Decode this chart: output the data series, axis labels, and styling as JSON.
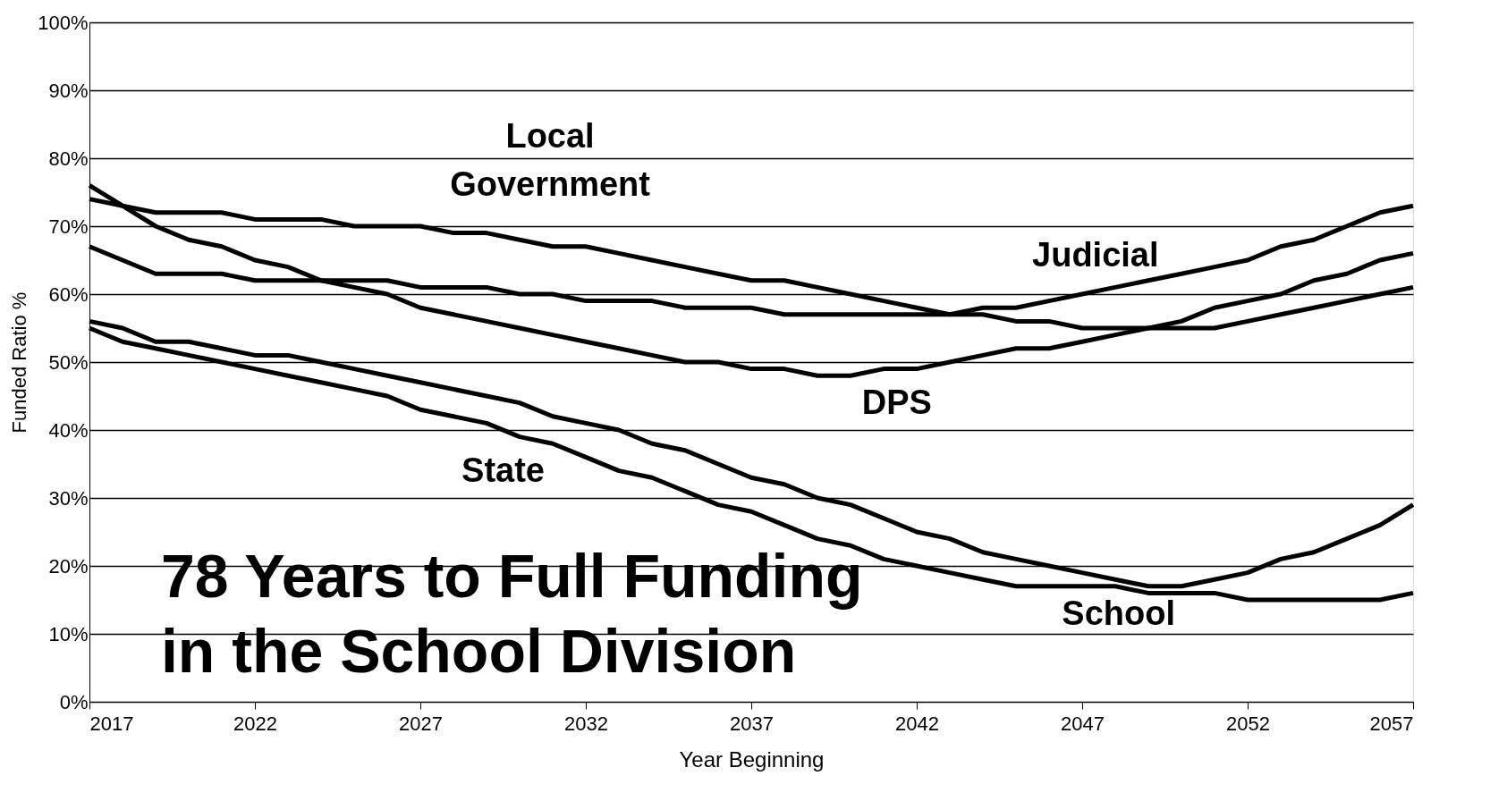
{
  "chart_data": {
    "type": "line",
    "xlabel": "Year Beginning",
    "ylabel": "Funded Ratio %",
    "x": [
      2017,
      2018,
      2019,
      2020,
      2021,
      2022,
      2023,
      2024,
      2025,
      2026,
      2027,
      2028,
      2029,
      2030,
      2031,
      2032,
      2033,
      2034,
      2035,
      2036,
      2037,
      2038,
      2039,
      2040,
      2041,
      2042,
      2043,
      2044,
      2045,
      2046,
      2047,
      2048,
      2049,
      2050,
      2051,
      2052,
      2053,
      2054,
      2055,
      2056,
      2057
    ],
    "series": [
      {
        "color": "#000000",
        "values": [
          74,
          73,
          72,
          72,
          72,
          71,
          71,
          71,
          70,
          70,
          70,
          69,
          69,
          68,
          67,
          67,
          66,
          65,
          64,
          63,
          62,
          62,
          61,
          60,
          59,
          58,
          57,
          58,
          58,
          59,
          60,
          61,
          62,
          63,
          64,
          65,
          67,
          68,
          70,
          72,
          73
        ]
      },
      {
        "color": "#000000",
        "values": [
          67,
          65,
          63,
          63,
          63,
          62,
          62,
          62,
          62,
          62,
          61,
          61,
          61,
          60,
          60,
          59,
          59,
          59,
          58,
          58,
          58,
          57,
          57,
          57,
          57,
          57,
          57,
          57,
          56,
          56,
          55,
          55,
          55,
          55,
          55,
          56,
          57,
          58,
          59,
          60,
          61
        ]
      },
      {
        "color": "#000000",
        "values": [
          76,
          73,
          70,
          68,
          67,
          65,
          64,
          62,
          61,
          60,
          58,
          57,
          56,
          55,
          54,
          53,
          52,
          51,
          50,
          50,
          49,
          49,
          48,
          48,
          49,
          49,
          50,
          51,
          52,
          52,
          53,
          54,
          55,
          56,
          58,
          59,
          60,
          62,
          63,
          65,
          66
        ]
      },
      {
        "color": "#000000",
        "values": [
          56,
          55,
          53,
          53,
          52,
          51,
          51,
          50,
          49,
          48,
          47,
          46,
          45,
          44,
          42,
          41,
          40,
          38,
          37,
          35,
          33,
          32,
          30,
          29,
          27,
          25,
          24,
          22,
          21,
          20,
          19,
          18,
          17,
          17,
          18,
          19,
          21,
          22,
          24,
          26,
          29
        ]
      },
      {
        "color": "#000000",
        "values": [
          55,
          53,
          52,
          51,
          50,
          49,
          48,
          47,
          46,
          45,
          43,
          42,
          41,
          39,
          38,
          36,
          34,
          33,
          31,
          29,
          28,
          26,
          24,
          23,
          21,
          20,
          19,
          18,
          17,
          17,
          17,
          17,
          16,
          16,
          16,
          15,
          15,
          15,
          15,
          15,
          16
        ]
      }
    ],
    "xlim": [
      2017,
      2057
    ],
    "xticks": [
      2017,
      2022,
      2027,
      2032,
      2037,
      2042,
      2047,
      2052,
      2057
    ],
    "ylim": [
      0,
      100
    ],
    "yticks": [
      {
        "value": 0,
        "label": "0%"
      },
      {
        "value": 10,
        "label": "10%"
      },
      {
        "value": 20,
        "label": "20%"
      },
      {
        "value": 30,
        "label": "30%"
      },
      {
        "value": 40,
        "label": "40%"
      },
      {
        "value": 50,
        "label": "50%"
      },
      {
        "value": 60,
        "label": "60%"
      },
      {
        "value": 70,
        "label": "70%"
      },
      {
        "value": 80,
        "label": "80%"
      },
      {
        "value": 90,
        "label": "90%"
      },
      {
        "value": 100,
        "label": "100%"
      }
    ],
    "grid": "y",
    "legend": false,
    "marker": "none",
    "line_style": "solid",
    "annotations": [
      "Local\nGovernment",
      "Judicial",
      "DPS",
      "State",
      "School",
      "78 Years to Full Funding\nin the School Division"
    ]
  }
}
